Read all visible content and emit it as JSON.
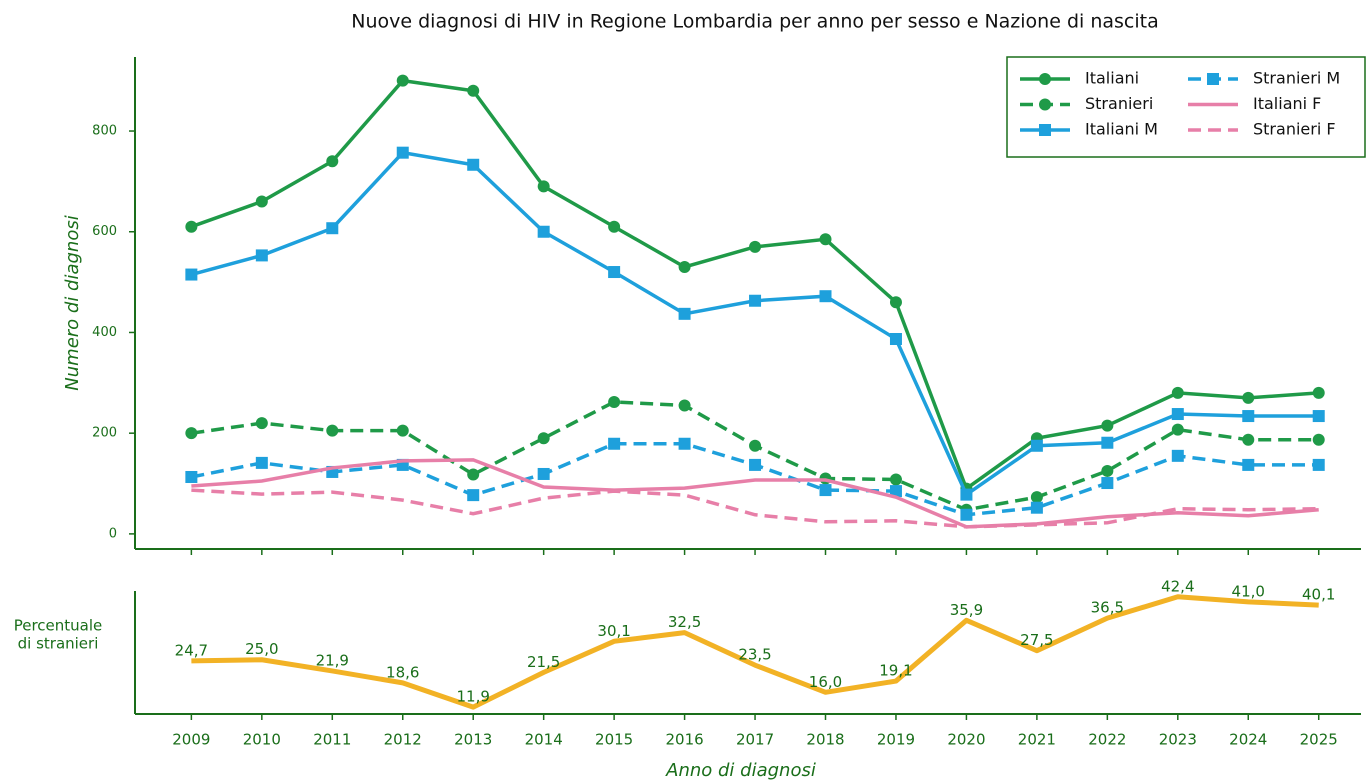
{
  "chart_data": [
    {
      "type": "line",
      "title": "Nuove diagnosi di HIV in Regione Lombardia per anno per sesso e Nazione di nascita",
      "ylabel": "Numero di diagnosi",
      "x": [
        2009,
        2010,
        2011,
        2012,
        2013,
        2014,
        2015,
        2016,
        2017,
        2018,
        2019,
        2020,
        2021,
        2022,
        2023,
        2024,
        2025
      ],
      "xlim": [
        2008.2,
        2025.6
      ],
      "ylim": [
        -30,
        947
      ],
      "yticks": [
        0,
        200,
        400,
        600,
        800
      ],
      "legend": "upper right",
      "series": [
        {
          "name": "Italiani",
          "color": "#1f9a48",
          "linestyle": "solid",
          "marker": "circle",
          "values": [
            610,
            660,
            740,
            900,
            880,
            690,
            610,
            530,
            570,
            585,
            460,
            90,
            190,
            215,
            280,
            270,
            280
          ]
        },
        {
          "name": "Stranieri",
          "color": "#1f9a48",
          "linestyle": "dashed",
          "marker": "circle",
          "values": [
            200,
            220,
            205,
            205,
            118,
            190,
            262,
            255,
            175,
            110,
            108,
            48,
            73,
            125,
            207,
            187,
            187
          ]
        },
        {
          "name": "Italiani M",
          "color": "#1ea0dc",
          "linestyle": "solid",
          "marker": "square",
          "values": [
            515,
            553,
            607,
            757,
            733,
            600,
            520,
            437,
            463,
            472,
            387,
            78,
            175,
            181,
            238,
            234,
            234
          ]
        },
        {
          "name": "Stranieri M",
          "color": "#1ea0dc",
          "linestyle": "dashed",
          "marker": "square",
          "values": [
            113,
            141,
            123,
            137,
            77,
            119,
            179,
            179,
            137,
            87,
            85,
            38,
            52,
            101,
            155,
            137,
            137
          ]
        },
        {
          "name": "Italiani F",
          "color": "#e77fa8",
          "linestyle": "solid",
          "marker": "none",
          "values": [
            95,
            105,
            131,
            145,
            147,
            93,
            87,
            91,
            107,
            107,
            73,
            14,
            20,
            34,
            42,
            36,
            48
          ]
        },
        {
          "name": "Stranieri F",
          "color": "#e77fa8",
          "linestyle": "dashed",
          "marker": "none",
          "values": [
            87,
            79,
            83,
            67,
            40,
            71,
            85,
            77,
            38,
            24,
            26,
            14,
            18,
            22,
            50,
            48,
            50
          ]
        }
      ]
    },
    {
      "type": "line",
      "ylabel": [
        "Percentuale",
        "di stranieri"
      ],
      "xlabel": "Anno di diagnosi",
      "x": [
        2009,
        2010,
        2011,
        2012,
        2013,
        2014,
        2015,
        2016,
        2017,
        2018,
        2019,
        2020,
        2021,
        2022,
        2023,
        2024,
        2025
      ],
      "xlim": [
        2008.2,
        2025.6
      ],
      "xticks": [
        2009,
        2010,
        2011,
        2012,
        2013,
        2014,
        2015,
        2016,
        2017,
        2018,
        2019,
        2020,
        2021,
        2022,
        2023,
        2024,
        2025
      ],
      "ylim": [
        10,
        44
      ],
      "color": "#f2b225",
      "values": [
        24.7,
        25.0,
        21.9,
        18.6,
        11.9,
        21.5,
        30.1,
        32.5,
        23.5,
        16.0,
        19.1,
        35.9,
        27.5,
        36.5,
        42.4,
        41.0,
        40.1
      ],
      "value_labels": [
        "24,7",
        "25,0",
        "21,9",
        "18,6",
        "11,9",
        "21,5",
        "30,1",
        "32,5",
        "23,5",
        "16,0",
        "19,1",
        "35,9",
        "27,5",
        "36,5",
        "42,4",
        "41,0",
        "40,1"
      ]
    }
  ]
}
